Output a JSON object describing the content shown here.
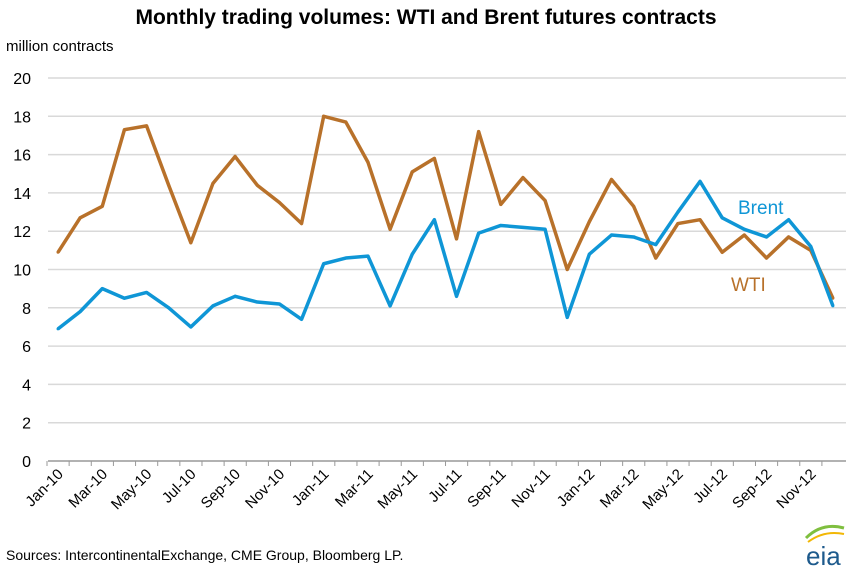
{
  "chart_data": {
    "type": "line",
    "title": "Monthly trading volumes:  WTI and Brent futures contracts",
    "ylabel": "million contracts",
    "ylim": [
      0,
      20
    ],
    "yticks": [
      0,
      2,
      4,
      6,
      8,
      10,
      12,
      14,
      16,
      18,
      20
    ],
    "grid": true,
    "x": [
      "Jan-10",
      "Feb-10",
      "Mar-10",
      "Apr-10",
      "May-10",
      "Jun-10",
      "Jul-10",
      "Aug-10",
      "Sep-10",
      "Oct-10",
      "Nov-10",
      "Dec-10",
      "Jan-11",
      "Feb-11",
      "Mar-11",
      "Apr-11",
      "May-11",
      "Jun-11",
      "Jul-11",
      "Aug-11",
      "Sep-11",
      "Oct-11",
      "Nov-11",
      "Dec-11",
      "Jan-12",
      "Feb-12",
      "Mar-12",
      "Apr-12",
      "May-12",
      "Jun-12",
      "Jul-12",
      "Aug-12",
      "Sep-12",
      "Oct-12",
      "Nov-12",
      "Dec-12"
    ],
    "xtick_labels": [
      "Jan-10",
      "Mar-10",
      "May-10",
      "Jul-10",
      "Sep-10",
      "Nov-10",
      "Jan-11",
      "Mar-11",
      "May-11",
      "Jul-11",
      "Sep-11",
      "Nov-11",
      "Jan-12",
      "Mar-12",
      "May-12",
      "Jul-12",
      "Sep-12",
      "Nov-12"
    ],
    "series": [
      {
        "name": "WTI",
        "color": "#b8712a",
        "values": [
          10.9,
          12.7,
          13.3,
          17.3,
          17.5,
          14.4,
          11.4,
          14.5,
          15.9,
          14.4,
          13.5,
          12.4,
          18.0,
          17.7,
          15.6,
          12.1,
          15.1,
          15.8,
          11.6,
          17.2,
          13.4,
          14.8,
          13.6,
          10.0,
          12.5,
          14.7,
          13.3,
          10.6,
          12.4,
          12.6,
          10.9,
          11.8,
          10.6,
          11.7,
          11.0,
          8.5
        ]
      },
      {
        "name": "Brent",
        "color": "#0f96d6",
        "values": [
          6.9,
          7.8,
          9.0,
          8.5,
          8.8,
          8.0,
          7.0,
          8.1,
          8.6,
          8.3,
          8.2,
          7.4,
          10.3,
          10.6,
          10.7,
          8.1,
          10.8,
          12.6,
          8.6,
          11.9,
          12.3,
          12.2,
          12.1,
          7.5,
          10.8,
          11.8,
          11.7,
          11.3,
          13.0,
          14.6,
          12.7,
          12.1,
          11.7,
          12.6,
          11.2,
          8.1
        ]
      }
    ],
    "legend": "inline labels near right end"
  },
  "source": "Sources:  IntercontinentalExchange, CME Group, Bloomberg LP.",
  "logo_text": "eia"
}
